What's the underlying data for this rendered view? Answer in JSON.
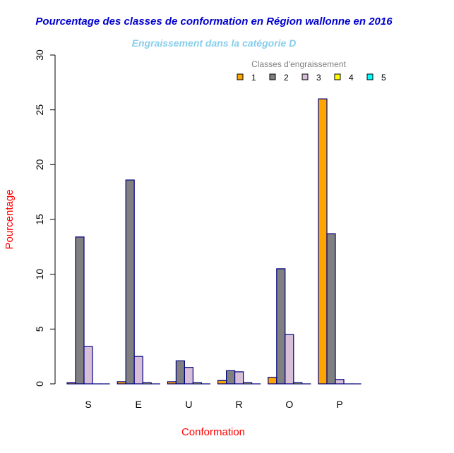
{
  "chart_data": {
    "type": "bar",
    "title": "Pourcentage des classes de conformation en Région wallonne en 2016",
    "subtitle": "Engraissement dans la catégorie D",
    "xlabel": "Conformation",
    "ylabel": "Pourcentage",
    "ylim": [
      0,
      30
    ],
    "yticks": [
      "0",
      "5",
      "10",
      "15",
      "20",
      "25",
      "30"
    ],
    "categories": [
      "S",
      "E",
      "U",
      "R",
      "O",
      "P"
    ],
    "legend_title": "Classes d'engraissement",
    "legend_position": "top-right",
    "bar_border": "#000080",
    "series": [
      {
        "name": "1",
        "color": "#FFA500",
        "values": [
          0.1,
          0.2,
          0.2,
          0.3,
          0.6,
          26.0
        ]
      },
      {
        "name": "2",
        "color": "#808080",
        "values": [
          13.4,
          18.6,
          2.1,
          1.2,
          10.5,
          13.7
        ]
      },
      {
        "name": "3",
        "color": "#D8BFD8",
        "values": [
          3.4,
          2.5,
          1.5,
          1.1,
          4.5,
          0.4
        ]
      },
      {
        "name": "4",
        "color": "#FFFF00",
        "values": [
          0.0,
          0.1,
          0.1,
          0.1,
          0.1,
          0.0
        ]
      },
      {
        "name": "5",
        "color": "#00FFFF",
        "values": [
          0.0,
          0.0,
          0.0,
          0.0,
          0.0,
          0.0
        ]
      }
    ]
  }
}
